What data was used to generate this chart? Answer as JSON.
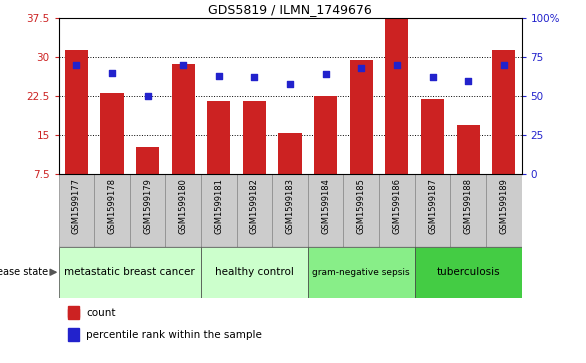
{
  "title": "GDS5819 / ILMN_1749676",
  "samples": [
    "GSM1599177",
    "GSM1599178",
    "GSM1599179",
    "GSM1599180",
    "GSM1599181",
    "GSM1599182",
    "GSM1599183",
    "GSM1599184",
    "GSM1599185",
    "GSM1599186",
    "GSM1599187",
    "GSM1599188",
    "GSM1599189"
  ],
  "counts": [
    31.3,
    23.2,
    12.8,
    28.6,
    21.6,
    21.5,
    15.5,
    22.6,
    29.5,
    37.5,
    22.0,
    17.0,
    31.3
  ],
  "percentiles": [
    70,
    65,
    50,
    70,
    63,
    62,
    58,
    64,
    68,
    70,
    62,
    60,
    70
  ],
  "ylim_left": [
    7.5,
    37.5
  ],
  "ylim_right": [
    0,
    100
  ],
  "yticks_left": [
    7.5,
    15.0,
    22.5,
    30.0,
    37.5
  ],
  "yticks_right": [
    0,
    25,
    50,
    75,
    100
  ],
  "bar_color": "#cc2222",
  "dot_color": "#2222cc",
  "plot_bg": "#ffffff",
  "xtick_bg": "#cccccc",
  "groups": [
    {
      "label": "metastatic breast cancer",
      "start": 0,
      "end": 4,
      "color": "#ccffcc",
      "fontsize": 7.5
    },
    {
      "label": "healthy control",
      "start": 4,
      "end": 7,
      "color": "#ccffcc",
      "fontsize": 7.5
    },
    {
      "label": "gram-negative sepsis",
      "start": 7,
      "end": 10,
      "color": "#88ee88",
      "fontsize": 6.5
    },
    {
      "label": "tuberculosis",
      "start": 10,
      "end": 13,
      "color": "#44cc44",
      "fontsize": 7.5
    }
  ],
  "legend_items": [
    {
      "label": "count",
      "color": "#cc2222"
    },
    {
      "label": "percentile rank within the sample",
      "color": "#2222cc"
    }
  ]
}
